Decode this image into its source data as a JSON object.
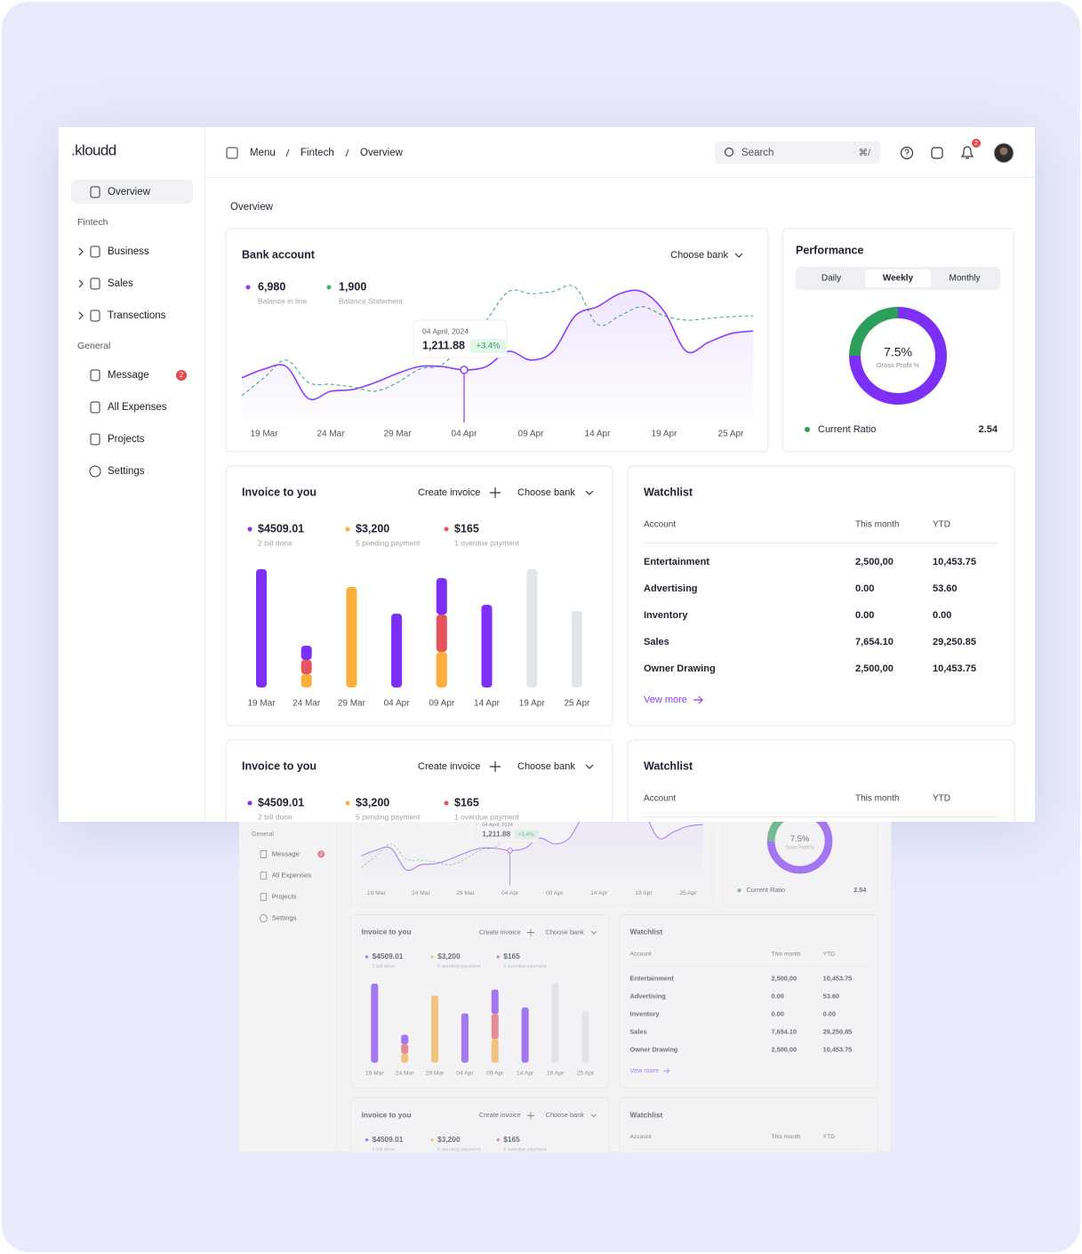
{
  "brand": ".kloudd",
  "breadcrumb": [
    "Menu",
    "Fintech",
    "Overview"
  ],
  "search": {
    "placeholder": "Search",
    "shortcut": "⌘/"
  },
  "notifications": "2",
  "sidebar": {
    "active": "Overview",
    "sections": [
      {
        "title": "Fintech",
        "items": [
          {
            "label": "Business"
          },
          {
            "label": "Sales"
          },
          {
            "label": "Transections"
          }
        ]
      },
      {
        "title": "General",
        "items": [
          {
            "label": "Message",
            "badge": "2"
          },
          {
            "label": "All Expenses"
          },
          {
            "label": "Projects"
          },
          {
            "label": "Settings"
          }
        ]
      }
    ]
  },
  "page_title": "Overview",
  "chart_data": [
    {
      "type": "line",
      "title": "Bank account",
      "control": "Choose bank",
      "categories": [
        null,
        "19 Mar",
        null,
        null,
        "24 Mar",
        null,
        null,
        "29 Mar",
        null,
        null,
        "04 Apr",
        null,
        null,
        "09 Apr",
        null,
        null,
        "14 Apr",
        null,
        null,
        "19 Apr",
        null,
        null,
        "25 Apr",
        null
      ],
      "series": [
        {
          "name": "Balance in line",
          "total": "6,980",
          "color": "#8b3dff",
          "dash": false,
          "values": [
            1030,
            1230,
            1290,
            550,
            720,
            760,
            920,
            1130,
            1290,
            1290,
            1211.88,
            1290,
            1640,
            1440,
            1640,
            2460,
            2670,
            2970,
            3020,
            2560,
            1640,
            1850,
            2050,
            2110
          ]
        },
        {
          "name": "Balance Statement",
          "total": "1,900",
          "color": "#3cb371",
          "dash": true,
          "values": [
            620,
            1030,
            1440,
            920,
            880,
            820,
            720,
            920,
            1230,
            1330,
            1850,
            2360,
            3020,
            2970,
            3020,
            3120,
            2260,
            2460,
            2670,
            2460,
            2360,
            2400,
            2440,
            2460
          ]
        }
      ],
      "ylim": [
        0,
        3200
      ],
      "tooltip": {
        "date": "04 April, 2024",
        "value": 1211.88,
        "value_label": "1,211.88",
        "change": "+3.4%"
      }
    },
    {
      "type": "donut",
      "title": "Performance",
      "tabs": [
        "Daily",
        "Weekly",
        "Monthly"
      ],
      "active_tab": "Weekly",
      "center_value": "7.5%",
      "center_label": "Gross Profit %",
      "values": [
        75,
        25
      ],
      "colors": [
        "#7b2ff7",
        "#2e9e5b"
      ],
      "metric": {
        "label": "Current Ratio",
        "value": "2.54",
        "color": "#2e9e5b"
      }
    },
    {
      "type": "bar",
      "stacked": true,
      "title": "Invoice to you",
      "actions": [
        "Create invoice",
        "Choose bank"
      ],
      "summary": [
        {
          "amount": "$4509.01",
          "note": "2 bill done",
          "color": "#7b2ff7"
        },
        {
          "amount": "$3,200",
          "note": "5 pending payment",
          "color": "#fbb03b"
        },
        {
          "amount": "$165",
          "note": "1 overdue payment",
          "color": "#e5545a"
        }
      ],
      "categories": [
        "19 Mar",
        "24 Mar",
        "29 Mar",
        "04 Apr",
        "09 Apr",
        "14 Apr",
        "19 Apr",
        "25 Apr"
      ],
      "series": [
        {
          "color": "#fbb03b",
          "values": [
            0,
            15,
            113,
            0,
            40,
            0,
            0,
            0
          ]
        },
        {
          "color": "#e5545a",
          "values": [
            0,
            16,
            0,
            0,
            42,
            0,
            0,
            0
          ]
        },
        {
          "color": "#7b2ff7",
          "values": [
            133,
            16,
            0,
            83,
            41,
            93,
            0,
            0
          ]
        },
        {
          "color": "#e2e6ec",
          "values": [
            0,
            0,
            0,
            0,
            0,
            0,
            133,
            86
          ]
        }
      ],
      "ylim": [
        0,
        140
      ]
    }
  ],
  "watchlist": {
    "title": "Watchlist",
    "columns": [
      "Account",
      "This month",
      "YTD"
    ],
    "rows": [
      [
        "Entertainment",
        "2,500,00",
        "10,453.75"
      ],
      [
        "Advertising",
        "0.00",
        "53.60"
      ],
      [
        "Inventory",
        "0.00",
        "0.00"
      ],
      [
        "Sales",
        "7,654.10",
        "29,250.85"
      ],
      [
        "Owner Drawing",
        "2,500,00",
        "10,453.75"
      ]
    ],
    "link": "Vew more"
  }
}
